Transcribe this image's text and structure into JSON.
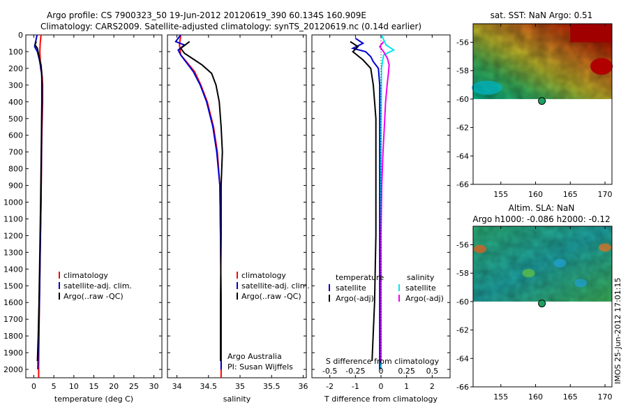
{
  "header": {
    "title_line1": "Argo profile: CS 7900323_50 19-Jun-2012 20120619_390 60.134S 160.909E",
    "title_line2": "Climatology: CARS2009. Satellite-adjusted climatology: synTS_20120619.nc (0.14d earlier)"
  },
  "side_label": "IMOS 25-Jun-2012 17:01:15",
  "colors": {
    "climatology": "#ff0000",
    "satellite_adj": "#0000cc",
    "argo": "#000000",
    "salinity_satellite": "#00e5ee",
    "salinity_argo": "#ee00ee"
  },
  "chart_data": [
    {
      "type": "line",
      "panel": "temperature",
      "xlabel": "temperature (deg C)",
      "ylabel": "",
      "xlim": [
        -2,
        32
      ],
      "ylim": [
        2050,
        0
      ],
      "xticks": [
        0,
        5,
        10,
        15,
        20,
        25,
        30
      ],
      "yticks": [
        0,
        100,
        200,
        300,
        400,
        500,
        600,
        700,
        800,
        900,
        1000,
        1100,
        1200,
        1300,
        1400,
        1500,
        1600,
        1700,
        1800,
        1900,
        2000
      ],
      "legend": [
        "climatology",
        "satellite-adj. clim.",
        "Argo(..raw -QC)"
      ],
      "series": [
        {
          "name": "climatology",
          "color": "#ff0000",
          "points": [
            [
              1.8,
              0
            ],
            [
              1.6,
              50
            ],
            [
              1.5,
              100
            ],
            [
              1.7,
              200
            ],
            [
              2.1,
              250
            ],
            [
              2.2,
              300
            ],
            [
              2.2,
              400
            ],
            [
              2.1,
              500
            ],
            [
              2.0,
              600
            ],
            [
              1.9,
              800
            ],
            [
              1.8,
              1000
            ],
            [
              1.6,
              1300
            ],
            [
              1.4,
              1600
            ],
            [
              1.3,
              1800
            ],
            [
              1.2,
              2000
            ],
            [
              1.2,
              2050
            ]
          ]
        },
        {
          "name": "satellite-adj. clim.",
          "color": "#0000cc",
          "points": [
            [
              0.8,
              0
            ],
            [
              0.2,
              70
            ],
            [
              0.9,
              100
            ],
            [
              1.4,
              150
            ],
            [
              1.9,
              220
            ],
            [
              2.1,
              300
            ],
            [
              2.1,
              400
            ],
            [
              2.0,
              500
            ],
            [
              1.9,
              700
            ],
            [
              1.8,
              1000
            ],
            [
              1.6,
              1300
            ],
            [
              1.4,
              1600
            ],
            [
              1.2,
              1800
            ],
            [
              1.0,
              2000
            ]
          ]
        },
        {
          "name": "Argo(..raw -QC)",
          "color": "#000000",
          "points": [
            [
              0.6,
              40
            ],
            [
              0.3,
              60
            ],
            [
              0.9,
              80
            ],
            [
              1.3,
              130
            ],
            [
              1.8,
              180
            ],
            [
              2.0,
              230
            ],
            [
              2.0,
              300
            ],
            [
              2.0,
              400
            ],
            [
              1.9,
              600
            ],
            [
              1.8,
              800
            ],
            [
              1.7,
              1000
            ],
            [
              1.5,
              1300
            ],
            [
              1.3,
              1600
            ],
            [
              1.1,
              1800
            ],
            [
              0.9,
              1950
            ]
          ]
        }
      ]
    },
    {
      "type": "line",
      "panel": "salinity",
      "xlabel": "salinity",
      "ylabel": "",
      "xlim": [
        33.85,
        36.05
      ],
      "ylim": [
        2050,
        0
      ],
      "xticks": [
        34,
        34.5,
        35,
        35.5,
        36
      ],
      "xticklabels": [
        "34",
        "34.5",
        "35",
        "35.5",
        "36"
      ],
      "legend": [
        "climatology",
        "satellite-adj. clim.",
        "Argo(..raw -QC)"
      ],
      "annotations": [
        "Argo Australia",
        "PI: Susan Wijffels"
      ],
      "series": [
        {
          "name": "climatology",
          "color": "#ff0000",
          "points": [
            [
              34.06,
              0
            ],
            [
              34.04,
              60
            ],
            [
              34.06,
              120
            ],
            [
              34.15,
              160
            ],
            [
              34.28,
              220
            ],
            [
              34.38,
              300
            ],
            [
              34.48,
              400
            ],
            [
              34.58,
              550
            ],
            [
              34.64,
              700
            ],
            [
              34.68,
              900
            ],
            [
              34.69,
              1200
            ],
            [
              34.7,
              1600
            ],
            [
              34.7,
              2000
            ],
            [
              34.7,
              2050
            ]
          ]
        },
        {
          "name": "satellite-adj. clim.",
          "color": "#0000cc",
          "points": [
            [
              34.06,
              0
            ],
            [
              33.98,
              40
            ],
            [
              34.12,
              60
            ],
            [
              34.02,
              90
            ],
            [
              34.06,
              120
            ],
            [
              34.14,
              160
            ],
            [
              34.26,
              220
            ],
            [
              34.37,
              300
            ],
            [
              34.47,
              400
            ],
            [
              34.57,
              550
            ],
            [
              34.63,
              700
            ],
            [
              34.68,
              900
            ],
            [
              34.69,
              1200
            ],
            [
              34.7,
              1600
            ],
            [
              34.7,
              2000
            ]
          ]
        },
        {
          "name": "Argo(..raw -QC)",
          "color": "#000000",
          "points": [
            [
              34.2,
              40
            ],
            [
              34.06,
              80
            ],
            [
              34.12,
              110
            ],
            [
              34.24,
              140
            ],
            [
              34.4,
              180
            ],
            [
              34.55,
              230
            ],
            [
              34.62,
              300
            ],
            [
              34.67,
              400
            ],
            [
              34.7,
              550
            ],
            [
              34.72,
              700
            ],
            [
              34.7,
              900
            ],
            [
              34.7,
              1200
            ],
            [
              34.69,
              1600
            ],
            [
              34.69,
              1950
            ]
          ]
        }
      ]
    },
    {
      "type": "line",
      "panel": "difference",
      "xlabel": "T difference from climatology",
      "ylabel": "",
      "xlim": [
        -2.7,
        2.7
      ],
      "ylim": [
        2050,
        0
      ],
      "xticks": [
        -2,
        -1,
        0,
        1,
        2
      ],
      "secondary_xlabel": "S difference from climatology",
      "secondary_xticks": [
        -0.5,
        -0.25,
        0,
        0.25,
        0.5
      ],
      "legend_groups": [
        {
          "title": "temperature",
          "items": [
            "satellite",
            "Argo(-adj)"
          ]
        },
        {
          "title": "salinity",
          "items": [
            "satellite",
            "Argo(-adj)"
          ]
        }
      ],
      "series": [
        {
          "name": "temperature satellite",
          "color": "#0000cc",
          "points": [
            [
              -1.0,
              20
            ],
            [
              -0.7,
              50
            ],
            [
              -1.1,
              80
            ],
            [
              -0.6,
              100
            ],
            [
              -0.4,
              130
            ],
            [
              -0.3,
              160
            ],
            [
              -0.1,
              200
            ],
            [
              -0.05,
              300
            ],
            [
              -0.05,
              500
            ],
            [
              -0.05,
              800
            ],
            [
              -0.05,
              1200
            ],
            [
              -0.05,
              1600
            ],
            [
              -0.05,
              2000
            ]
          ]
        },
        {
          "name": "temperature Argo(-adj)",
          "color": "#000000",
          "points": [
            [
              -1.2,
              40
            ],
            [
              -0.9,
              70
            ],
            [
              -1.1,
              100
            ],
            [
              -0.7,
              150
            ],
            [
              -0.4,
              200
            ],
            [
              -0.3,
              300
            ],
            [
              -0.2,
              500
            ],
            [
              -0.2,
              800
            ],
            [
              -0.2,
              1200
            ],
            [
              -0.25,
              1600
            ],
            [
              -0.35,
              1950
            ]
          ]
        },
        {
          "name": "salinity satellite",
          "color": "#00e5ee",
          "points": [
            [
              0.02,
              0
            ],
            [
              0.2,
              60
            ],
            [
              0.5,
              90
            ],
            [
              0.1,
              120
            ],
            [
              0.02,
              200
            ],
            [
              0.01,
              400
            ],
            [
              0.0,
              800
            ],
            [
              0.0,
              1200
            ],
            [
              0.0,
              1600
            ],
            [
              0.0,
              2000
            ]
          ]
        },
        {
          "name": "salinity Argo(-adj)",
          "color": "#ee00ee",
          "points": [
            [
              0.1,
              40
            ],
            [
              -0.05,
              70
            ],
            [
              0.1,
              100
            ],
            [
              0.25,
              140
            ],
            [
              0.32,
              180
            ],
            [
              0.29,
              230
            ],
            [
              0.24,
              300
            ],
            [
              0.18,
              400
            ],
            [
              0.13,
              550
            ],
            [
              0.08,
              700
            ],
            [
              0.03,
              900
            ],
            [
              0.0,
              1200
            ],
            [
              0.0,
              1600
            ],
            [
              0.0,
              1950
            ]
          ]
        }
      ]
    },
    {
      "type": "heatmap",
      "panel": "sst_map",
      "title": "sat. SST: NaN Argo: 0.51",
      "xlim": [
        151,
        171
      ],
      "ylim": [
        -66,
        -54.7
      ],
      "xticks": [
        155,
        160,
        165,
        170
      ],
      "yticks": [
        -56,
        -58,
        -60,
        -62,
        -64,
        -66
      ],
      "profile_marker": {
        "lon": 160.909,
        "lat": -60.134
      }
    },
    {
      "type": "heatmap",
      "panel": "sla_map",
      "title": "Altim. SLA: NaN",
      "subtitle": "Argo h1000: -0.086 h2000: -0.12",
      "xlim": [
        151,
        171
      ],
      "ylim": [
        -66,
        -54.7
      ],
      "xticks": [
        155,
        160,
        165,
        170
      ],
      "yticks": [
        -56,
        -58,
        -60,
        -62,
        -64,
        -66
      ],
      "profile_marker": {
        "lon": 160.909,
        "lat": -60.134
      }
    }
  ]
}
